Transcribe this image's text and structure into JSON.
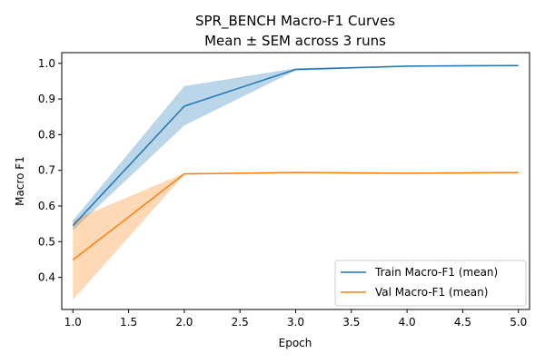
{
  "chart_data": {
    "type": "line",
    "title_line1": "SPR_BENCH Macro-F1 Curves",
    "title_line2": "Mean ± SEM across 3 runs",
    "xlabel": "Epoch",
    "ylabel": "Macro F1",
    "xlim": [
      0.9,
      5.1
    ],
    "ylim": [
      0.31,
      1.03
    ],
    "xticks": [
      "1.0",
      "1.5",
      "2.0",
      "2.5",
      "3.0",
      "3.5",
      "4.0",
      "4.5",
      "5.0"
    ],
    "yticks": [
      "0.4",
      "0.5",
      "0.6",
      "0.7",
      "0.8",
      "0.9",
      "1.0"
    ],
    "grid": false,
    "legend_position": "lower-right",
    "series": [
      {
        "name": "Train Macro-F1 (mean)",
        "color": "#1f77b4",
        "x": [
          1,
          2,
          3,
          4,
          5
        ],
        "mean": [
          0.545,
          0.88,
          0.983,
          0.992,
          0.994
        ],
        "lower": [
          0.532,
          0.826,
          0.98,
          0.99,
          0.992
        ],
        "upper": [
          0.56,
          0.936,
          0.986,
          0.994,
          0.996
        ]
      },
      {
        "name": "Val Macro-F1 (mean)",
        "color": "#ff7f0e",
        "x": [
          1,
          2,
          3,
          4,
          5
        ],
        "mean": [
          0.449,
          0.69,
          0.694,
          0.692,
          0.694
        ],
        "lower": [
          0.337,
          0.688,
          0.692,
          0.69,
          0.692
        ],
        "upper": [
          0.56,
          0.692,
          0.696,
          0.694,
          0.696
        ]
      }
    ]
  }
}
